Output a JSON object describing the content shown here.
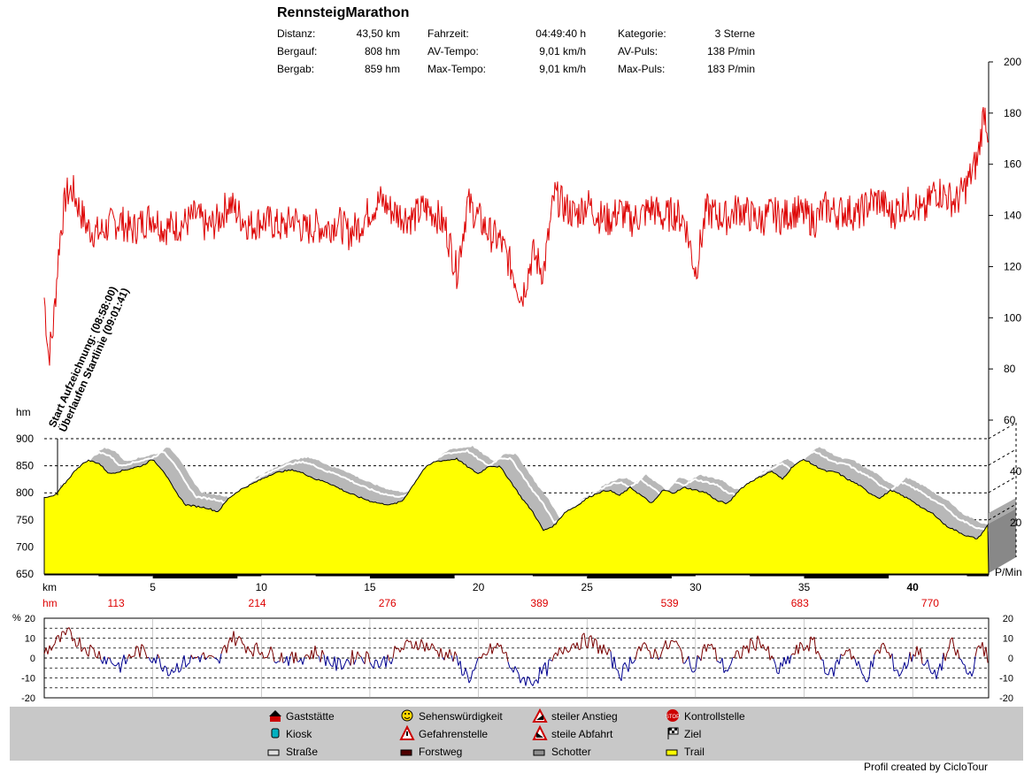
{
  "title": "RennsteigMarathon",
  "stats": [
    {
      "label": "Distanz:",
      "value": "43,50 km"
    },
    {
      "label": "Bergauf:",
      "value": "808 hm"
    },
    {
      "label": "Bergab:",
      "value": "859 hm"
    },
    {
      "label": "Fahrzeit:",
      "value": "04:49:40 h"
    },
    {
      "label": "AV-Tempo:",
      "value": "9,01 km/h"
    },
    {
      "label": "Max-Tempo:",
      "value": "9,01 km/h"
    },
    {
      "label": "Kategorie:",
      "value": "3 Sterne"
    },
    {
      "label": "AV-Puls:",
      "value": "138 P/min"
    },
    {
      "label": "Max-Puls:",
      "value": "183 P/min"
    }
  ],
  "annotations": [
    "Start Aufzeichnung: (08:58:00)",
    "Überlaufen Startlinie (09:01:41)"
  ],
  "pulse_axis": {
    "ticks": [
      "200",
      "180",
      "160",
      "140",
      "120",
      "100",
      "80",
      "60"
    ],
    "unit": "P/Min",
    "lower_ticks": [
      "40",
      "20"
    ]
  },
  "elevation_axis": {
    "unit": "hm",
    "ticks": [
      "900",
      "850",
      "800",
      "750",
      "700",
      "650"
    ]
  },
  "km_axis": {
    "unit": "km",
    "ticks": [
      "5",
      "10",
      "15",
      "20",
      "25",
      "30",
      "35",
      "40"
    ]
  },
  "hm_row": {
    "unit": "hm",
    "values": [
      "113",
      "214",
      "276",
      "389",
      "539",
      "683",
      "770"
    ]
  },
  "gradient_axis": {
    "unit": "%",
    "ticks": [
      "20",
      "10",
      "0",
      "-10",
      "-20"
    ]
  },
  "legend": [
    {
      "label": "Gaststätte",
      "icon": "house-icon"
    },
    {
      "label": "Sehenswürdigkeit",
      "icon": "smiley-icon"
    },
    {
      "label": "steiler Anstieg",
      "icon": "steep-climb-icon"
    },
    {
      "label": "Kontrollstelle",
      "icon": "stop-icon"
    },
    {
      "label": "Kiosk",
      "icon": "kiosk-icon"
    },
    {
      "label": "Gefahrenstelle",
      "icon": "warning-icon"
    },
    {
      "label": "steile Abfahrt",
      "icon": "steep-descent-icon"
    },
    {
      "label": "Ziel",
      "icon": "finish-flag-icon"
    },
    {
      "label": "Straße",
      "icon": "road-swatch"
    },
    {
      "label": "Forstweg",
      "icon": "forest-road-swatch"
    },
    {
      "label": "Schotter",
      "icon": "gravel-swatch"
    },
    {
      "label": "Trail",
      "icon": "trail-swatch"
    }
  ],
  "footer": "Profil created by CicloTour",
  "colors": {
    "pulse": "#dd0000",
    "elevation_fill": "#ffff00",
    "shadow": "#b8b8b8",
    "gradient_up": "#7a0000",
    "gradient_down": "#000090",
    "legend_bg": "#c8c8c8"
  },
  "chart_data": [
    {
      "type": "line",
      "name": "pulse",
      "ylim": [
        60,
        200
      ],
      "xlim_km": [
        0,
        43.5
      ],
      "x_km": [
        0,
        0.2,
        0.4,
        0.7,
        1.0,
        1.3,
        1.6,
        2.0,
        2.5,
        3,
        3.5,
        4,
        4.5,
        5,
        5.5,
        6,
        6.5,
        7,
        7.5,
        8,
        8.5,
        9,
        9.5,
        10,
        10.5,
        11,
        11.5,
        12,
        12.5,
        13,
        13.5,
        14,
        14.5,
        15,
        15.5,
        16,
        16.5,
        17,
        17.5,
        18,
        18.5,
        19,
        19.5,
        20,
        20.5,
        21,
        21.5,
        22,
        22.5,
        23,
        23.5,
        24,
        24.5,
        25,
        25.5,
        26,
        26.5,
        27,
        27.5,
        28,
        28.5,
        29,
        29.5,
        30,
        30.5,
        31,
        31.5,
        32,
        32.5,
        33,
        33.5,
        34,
        34.5,
        35,
        35.5,
        36,
        36.5,
        37,
        37.5,
        38,
        38.5,
        39,
        39.5,
        40,
        40.5,
        41,
        41.5,
        42,
        42.5,
        43,
        43.3,
        43.5
      ],
      "y": [
        108,
        85,
        95,
        130,
        148,
        150,
        143,
        135,
        133,
        136,
        138,
        134,
        137,
        140,
        135,
        136,
        137,
        140,
        135,
        138,
        145,
        140,
        136,
        138,
        137,
        135,
        139,
        134,
        136,
        135,
        138,
        133,
        136,
        142,
        146,
        142,
        140,
        139,
        143,
        141,
        135,
        118,
        145,
        139,
        133,
        130,
        120,
        108,
        125,
        118,
        148,
        143,
        140,
        145,
        140,
        138,
        142,
        138,
        140,
        143,
        139,
        141,
        138,
        118,
        142,
        140,
        139,
        143,
        140,
        138,
        141,
        139,
        142,
        140,
        138,
        143,
        141,
        142,
        140,
        145,
        146,
        140,
        144,
        145,
        140,
        150,
        148,
        145,
        152,
        162,
        182,
        172
      ]
    },
    {
      "type": "area",
      "name": "elevation",
      "ylim": [
        650,
        900
      ],
      "xlim_km": [
        0,
        43.5
      ],
      "x_km": [
        0,
        0.5,
        1,
        1.5,
        2,
        2.5,
        3,
        3.5,
        4,
        4.5,
        5,
        5.5,
        6,
        6.5,
        7,
        7.5,
        8,
        8.5,
        9,
        9.5,
        10,
        10.5,
        11,
        11.5,
        12,
        12.5,
        13,
        13.5,
        14,
        14.5,
        15,
        15.5,
        16,
        16.5,
        17,
        17.5,
        18,
        18.5,
        19,
        19.5,
        20,
        20.5,
        21,
        21.5,
        22,
        22.5,
        23,
        23.5,
        24,
        24.5,
        25,
        25.5,
        26,
        26.5,
        27,
        27.5,
        28,
        28.5,
        29,
        29.5,
        30,
        30.5,
        31,
        31.5,
        32,
        32.5,
        33,
        33.5,
        34,
        34.5,
        35,
        35.5,
        36,
        36.5,
        37,
        37.5,
        38,
        38.5,
        39,
        39.5,
        40,
        40.5,
        41,
        41.5,
        42,
        42.5,
        43,
        43.5
      ],
      "y": [
        790,
        795,
        820,
        845,
        860,
        855,
        835,
        840,
        845,
        850,
        862,
        840,
        805,
        778,
        775,
        772,
        765,
        790,
        805,
        815,
        825,
        835,
        840,
        842,
        835,
        825,
        820,
        810,
        800,
        792,
        785,
        780,
        778,
        785,
        815,
        845,
        858,
        860,
        863,
        848,
        835,
        850,
        848,
        820,
        790,
        765,
        730,
        740,
        765,
        775,
        790,
        800,
        805,
        795,
        810,
        795,
        780,
        805,
        800,
        810,
        805,
        800,
        785,
        780,
        805,
        820,
        830,
        840,
        825,
        850,
        862,
        850,
        840,
        838,
        825,
        815,
        800,
        790,
        805,
        795,
        785,
        770,
        760,
        740,
        730,
        720,
        715,
        742
      ]
    },
    {
      "type": "line",
      "name": "gradient",
      "ylim": [
        -20,
        20
      ],
      "xlim_km": [
        0,
        43.5
      ],
      "x_km": [
        0,
        0.7,
        1.2,
        1.8,
        2.5,
        3.5,
        4.3,
        5,
        5.8,
        6.5,
        7.2,
        8,
        8.6,
        9.5,
        10.5,
        11.5,
        12.5,
        13.5,
        14.5,
        15.5,
        16.5,
        17.2,
        18,
        18.8,
        19.6,
        20.4,
        21,
        21.7,
        22.4,
        23.2,
        24,
        25,
        25.8,
        26.6,
        27.4,
        28.2,
        29,
        29.8,
        30.6,
        31.4,
        32.2,
        33,
        33.8,
        34.6,
        35.4,
        36.2,
        37,
        37.8,
        38.6,
        39.4,
        40.2,
        41,
        41.8,
        42.6,
        43.2,
        43.5
      ],
      "y": [
        3,
        9,
        12,
        6,
        2,
        -4,
        4,
        1,
        -6,
        -2,
        1,
        -3,
        11,
        5,
        2,
        -1,
        3,
        -4,
        2,
        -3,
        5,
        8,
        4,
        1,
        -10,
        3,
        6,
        -8,
        -12,
        -5,
        6,
        9,
        4,
        -8,
        5,
        2,
        8,
        -5,
        7,
        -6,
        4,
        9,
        -7,
        3,
        8,
        -9,
        6,
        -11,
        7,
        -8,
        5,
        -10,
        7,
        -9,
        8,
        -2
      ]
    }
  ]
}
